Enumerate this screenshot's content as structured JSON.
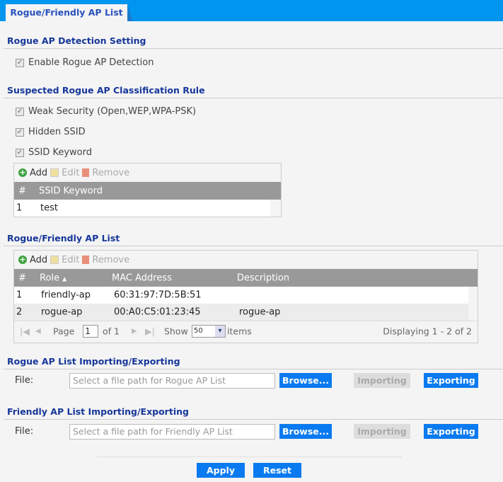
{
  "tab": {
    "label": "Rogue/Friendly AP List"
  },
  "detection": {
    "title": "Rogue AP Detection Setting",
    "enable_label": "Enable Rogue AP Detection",
    "enabled": true
  },
  "classification": {
    "title": "Suspected Rogue AP Classification Rule",
    "rules": [
      {
        "label": "Weak Security (Open,WEP,WPA-PSK)",
        "checked": true
      },
      {
        "label": "Hidden SSID",
        "checked": true
      },
      {
        "label": "SSID Keyword",
        "checked": true
      }
    ],
    "toolbar": {
      "add": "Add",
      "edit": "Edit",
      "remove": "Remove"
    },
    "columns": [
      "#",
      "SSID Keyword"
    ],
    "rows": [
      {
        "num": "1",
        "keyword": "test"
      }
    ]
  },
  "aplist": {
    "title": "Rogue/Friendly AP List",
    "toolbar": {
      "add": "Add",
      "edit": "Edit",
      "remove": "Remove"
    },
    "columns": {
      "num": "#",
      "role": "Role",
      "role_sort": "▲",
      "mac": "MAC Address",
      "desc": "Description"
    },
    "rows": [
      {
        "num": "1",
        "role": "friendly-ap",
        "mac": "60:31:97:7D:5B:51",
        "desc": ""
      },
      {
        "num": "2",
        "role": "rogue-ap",
        "mac": "00:A0:C5:01:23:45",
        "desc": "rogue-ap"
      }
    ],
    "pager": {
      "page_label": "Page",
      "page": "1",
      "of": "of 1",
      "show": "Show",
      "per_page": "50",
      "items": "items",
      "displaying": "Displaying 1 - 2 of 2"
    }
  },
  "rogue_io": {
    "title": "Rogue AP List Importing/Exporting",
    "file_label": "File:",
    "placeholder": "Select a file path for Rogue AP List",
    "browse": "Browse...",
    "importing": "Importing",
    "exporting": "Exporting"
  },
  "friendly_io": {
    "title": "Friendly AP List Importing/Exporting",
    "file_label": "File:",
    "placeholder": "Select a file path for Friendly AP List",
    "browse": "Browse...",
    "importing": "Importing",
    "exporting": "Exporting"
  },
  "footer": {
    "apply": "Apply",
    "reset": "Reset"
  },
  "colors": {
    "accent": "#0096f0",
    "button": "#0a7af0",
    "heading": "#17379a"
  }
}
